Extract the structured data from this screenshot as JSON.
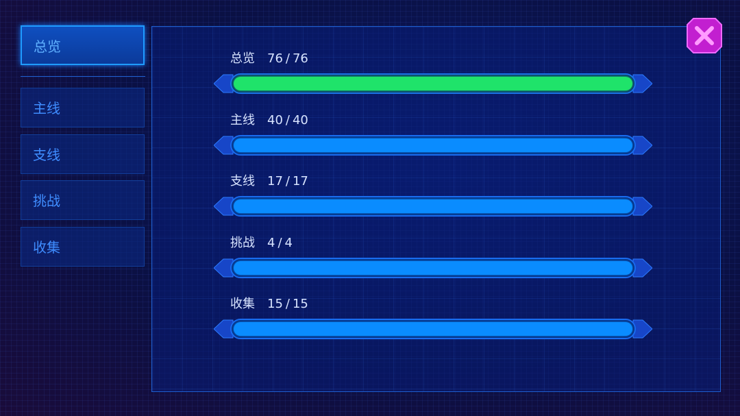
{
  "tabs": [
    {
      "label": "总览",
      "active": true
    },
    {
      "label": "主线",
      "active": false
    },
    {
      "label": "支线",
      "active": false
    },
    {
      "label": "挑战",
      "active": false
    },
    {
      "label": "收集",
      "active": false
    }
  ],
  "separator": "/",
  "rows": [
    {
      "label": "总览",
      "current": 76,
      "total": 76,
      "color": "#1fe36a"
    },
    {
      "label": "主线",
      "current": 40,
      "total": 40,
      "color": "#0a8cff"
    },
    {
      "label": "支线",
      "current": 17,
      "total": 17,
      "color": "#0a8cff"
    },
    {
      "label": "挑战",
      "current": 4,
      "total": 4,
      "color": "#0a8cff"
    },
    {
      "label": "收集",
      "current": 15,
      "total": 15,
      "color": "#0a8cff"
    }
  ]
}
